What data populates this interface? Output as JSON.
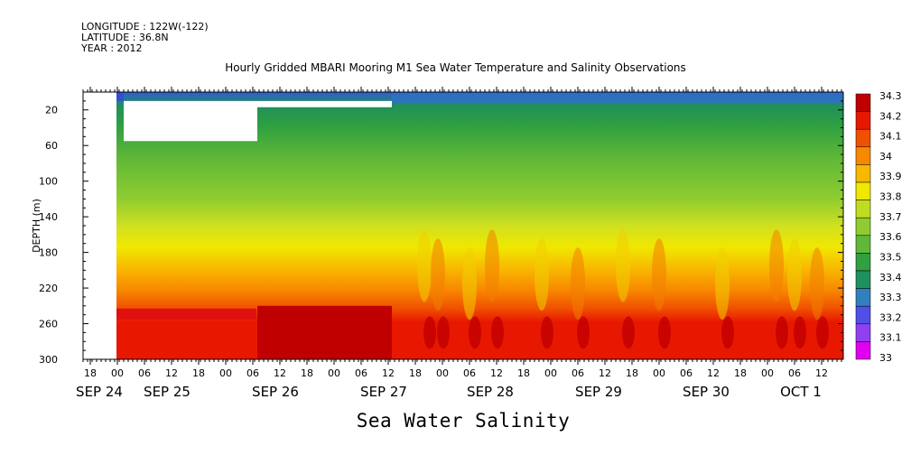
{
  "header": {
    "longitude": "LONGITUDE : 122W(-122)",
    "latitude": "LATITUDE : 36.8N",
    "year": "YEAR : 2012"
  },
  "chart_data": {
    "type": "heatmap",
    "title": "Hourly Gridded MBARI Mooring M1 Sea Water Temperature and Salinity Observations",
    "bottom_title": "Sea Water Salinity",
    "ylabel": "DEPTH (m)",
    "y_inverted": true,
    "ylim": [
      0,
      300
    ],
    "y_ticks": [
      20,
      60,
      100,
      140,
      180,
      220,
      260,
      300
    ],
    "x_hour_ticks": [
      "18",
      "00",
      "06",
      "12",
      "18",
      "00",
      "06",
      "12",
      "18",
      "00",
      "06",
      "12",
      "18",
      "00",
      "06",
      "12",
      "18",
      "00",
      "06",
      "12",
      "18",
      "00",
      "06",
      "12",
      "18",
      "00",
      "06",
      "12",
      "18",
      "00",
      "06",
      "12"
    ],
    "x_day_labels": [
      "SEP 24",
      "SEP 25",
      "SEP 26",
      "SEP 27",
      "SEP 28",
      "SEP 29",
      "SEP 30",
      "OCT  1"
    ],
    "colorbar_levels": [
      33,
      33.1,
      33.2,
      33.3,
      33.4,
      33.5,
      33.6,
      33.7,
      33.8,
      33.9,
      34,
      34.1,
      34.2,
      34.3
    ],
    "colorbar_labels": [
      "33",
      "33.1",
      "33.2",
      "33.3",
      "33.4",
      "33.5",
      "33.6",
      "33.7",
      "33.8",
      "33.9",
      "34",
      "34.1",
      "34.2",
      "34.3"
    ],
    "colorbar_colors": [
      "#e000f0",
      "#9040f0",
      "#5050e8",
      "#3080c0",
      "#209060",
      "#30a040",
      "#60b838",
      "#90cc30",
      "#c0dc20",
      "#f0e800",
      "#f8b800",
      "#f88800",
      "#f05000",
      "#e81800",
      "#c00000"
    ],
    "depth_profile": [
      {
        "depth": 10,
        "salinity": 33.35
      },
      {
        "depth": 30,
        "salinity": 33.45
      },
      {
        "depth": 60,
        "salinity": 33.55
      },
      {
        "depth": 100,
        "salinity": 33.65
      },
      {
        "depth": 140,
        "salinity": 33.8
      },
      {
        "depth": 180,
        "salinity": 33.95
      },
      {
        "depth": 220,
        "salinity": 34.1
      },
      {
        "depth": 260,
        "salinity": 34.22
      },
      {
        "depth": 300,
        "salinity": 34.25
      }
    ],
    "gaps": [
      {
        "start": "SEP 24 12:00",
        "end": "SEP 25 00:00",
        "depth_min": 0,
        "depth_max": 300
      },
      {
        "start": "SEP 25 06:00",
        "end": "SEP 26 06:00",
        "depth_min": 10,
        "depth_max": 55
      },
      {
        "start": "SEP 26 06:00",
        "end": "SEP 27 12:00",
        "depth_min": 10,
        "depth_max": 17
      }
    ]
  }
}
